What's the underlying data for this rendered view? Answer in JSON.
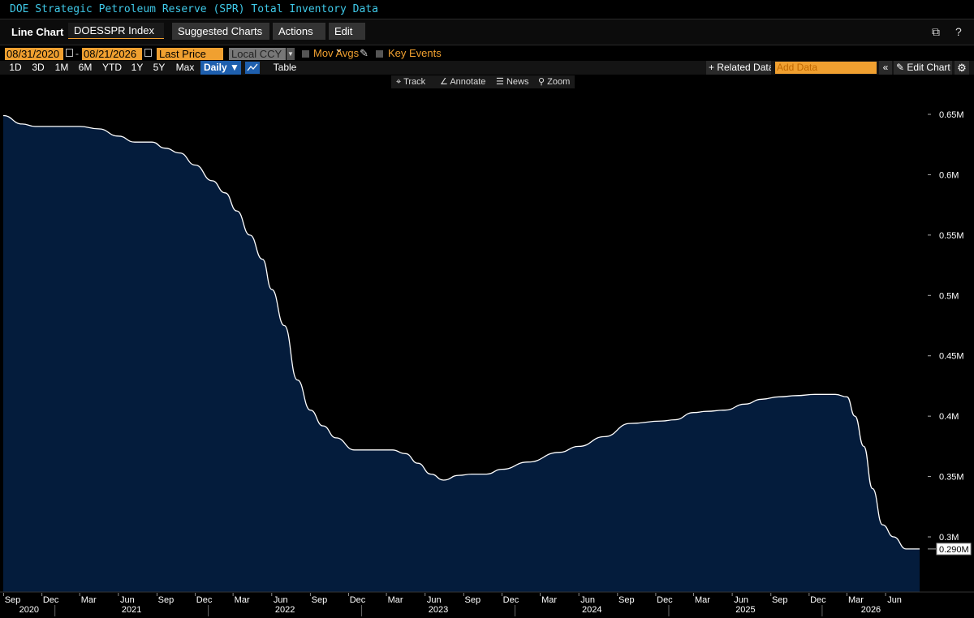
{
  "header": {
    "subtitle": "DOE Strategic Petroleum Reserve (SPR) Total Inventory Data"
  },
  "toolbar": {
    "chart_type": "Line Chart",
    "ticker": "DOESSPR Index",
    "suggested": "Suggested Charts",
    "actions": "Actions",
    "edit": "Edit",
    "help": "?"
  },
  "controls": {
    "start_date": "08/31/2020",
    "end_date": "08/21/2026",
    "field": "Last Price",
    "currency": "Local CCY",
    "mov_avgs": "Mov Avgs",
    "key_events": "Key Events",
    "periods": [
      "1D",
      "3D",
      "1M",
      "6M",
      "YTD",
      "1Y",
      "5Y",
      "Max"
    ],
    "frequency": "Daily",
    "table": "Table",
    "related": "Related Data",
    "add_data": "Add Data",
    "edit_chart": "Edit Chart"
  },
  "tools": {
    "track": "Track",
    "annotate": "Annotate",
    "news": "News",
    "zoom": "Zoom"
  },
  "colors": {
    "area": "#041c3c",
    "line": "#ffffff",
    "accent": "#f0a030",
    "subtitle": "#3fc9e8"
  },
  "chart_data": {
    "type": "area",
    "title": "",
    "xlabel": "",
    "ylabel": "",
    "y_unit": "M",
    "ylim": [
      0.25,
      0.67
    ],
    "yticks": [
      "0.3M",
      "0.35M",
      "0.4M",
      "0.45M",
      "0.5M",
      "0.55M",
      "0.6M",
      "0.65M"
    ],
    "last_value_label": "0.290M",
    "xlim": [
      "2020-08-31",
      "2026-08-21"
    ],
    "x_month_ticks": [
      "Sep",
      "Dec",
      "Mar",
      "Jun",
      "Sep",
      "Dec",
      "Mar",
      "Jun",
      "Sep",
      "Dec",
      "Mar",
      "Jun",
      "Sep",
      "Dec",
      "Mar",
      "Jun",
      "Sep",
      "Dec",
      "Mar",
      "Jun",
      "Sep",
      "Dec",
      "Mar",
      "Jun"
    ],
    "x_year_ticks": [
      "2020",
      "2021",
      "2022",
      "2023",
      "2024",
      "2025",
      "2026"
    ],
    "grid": false,
    "series": [
      {
        "x": [
          "2020-08-31",
          "2020-10-15",
          "2020-11-15",
          "2021-03-01",
          "2021-04-15",
          "2021-06-01",
          "2021-07-10",
          "2021-08-20",
          "2021-09-20",
          "2021-10-25",
          "2021-12-01",
          "2022-01-10",
          "2022-02-10",
          "2022-03-10",
          "2022-04-10",
          "2022-05-10",
          "2022-06-01",
          "2022-07-01",
          "2022-08-01",
          "2022-09-01",
          "2022-10-01",
          "2022-11-01",
          "2022-12-15",
          "2023-01-20",
          "2023-03-15",
          "2023-04-15",
          "2023-05-15",
          "2023-06-15",
          "2023-07-15",
          "2023-08-20",
          "2023-09-20",
          "2023-10-25",
          "2023-12-01",
          "2024-02-01",
          "2024-04-15",
          "2024-06-01",
          "2024-08-01",
          "2024-10-01",
          "2024-12-15",
          "2025-01-15",
          "2025-03-01",
          "2025-04-01",
          "2025-05-15",
          "2025-07-01",
          "2025-08-10",
          "2025-09-20",
          "2025-11-01",
          "2025-12-15",
          "2026-02-01",
          "2026-03-01",
          "2026-03-20",
          "2026-04-10",
          "2026-05-01",
          "2026-05-25",
          "2026-06-20",
          "2026-07-20",
          "2026-08-21"
        ],
        "y": [
          0.649,
          0.642,
          0.64,
          0.64,
          0.638,
          0.632,
          0.627,
          0.627,
          0.622,
          0.618,
          0.608,
          0.595,
          0.585,
          0.57,
          0.55,
          0.53,
          0.505,
          0.475,
          0.43,
          0.405,
          0.392,
          0.382,
          0.372,
          0.372,
          0.372,
          0.369,
          0.361,
          0.352,
          0.347,
          0.351,
          0.352,
          0.352,
          0.356,
          0.362,
          0.37,
          0.375,
          0.383,
          0.394,
          0.396,
          0.397,
          0.403,
          0.404,
          0.405,
          0.41,
          0.414,
          0.416,
          0.417,
          0.418,
          0.418,
          0.416,
          0.4,
          0.375,
          0.34,
          0.31,
          0.3,
          0.29,
          0.29
        ]
      }
    ]
  }
}
